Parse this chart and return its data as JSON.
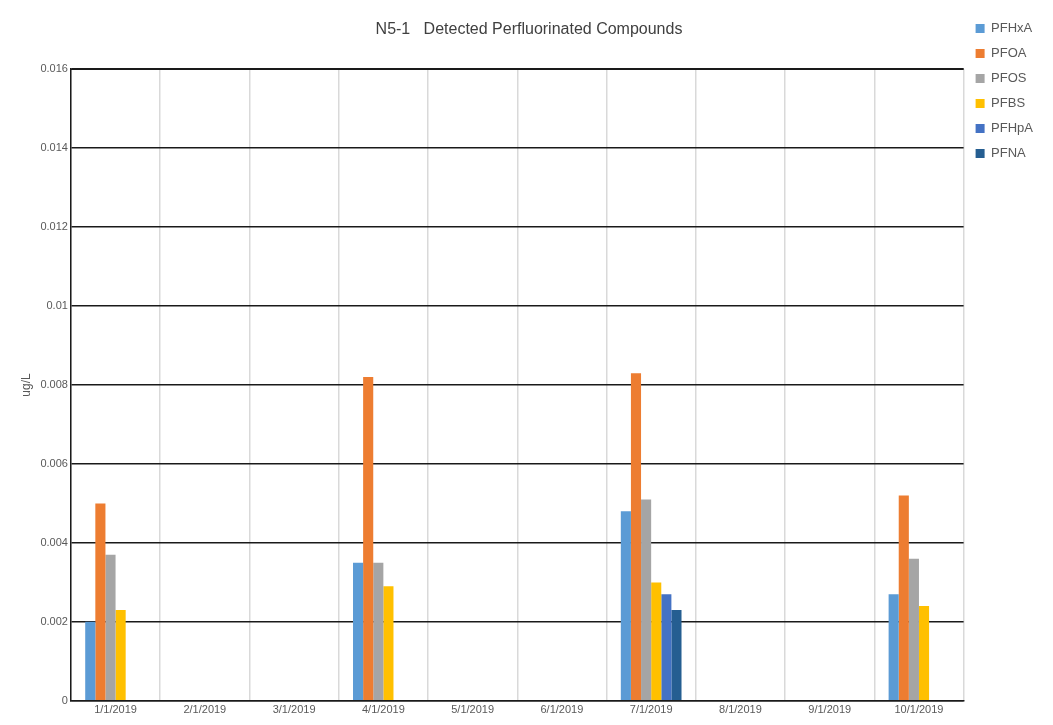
{
  "chart_data": {
    "type": "bar",
    "title": "N5-1   Detected Perfluorinated Compounds",
    "ylabel": "ug/L",
    "categories": [
      "1/1/2019",
      "2/1/2019",
      "3/1/2019",
      "4/1/2019",
      "5/1/2019",
      "6/1/2019",
      "7/1/2019",
      "8/1/2019",
      "9/1/2019",
      "10/1/2019"
    ],
    "series": [
      {
        "name": "PFHxA",
        "color": "#5b9bd5",
        "values": [
          0.002,
          null,
          null,
          0.0035,
          null,
          null,
          0.0048,
          null,
          null,
          0.0027
        ]
      },
      {
        "name": "PFOA",
        "color": "#ed7d31",
        "values": [
          0.005,
          null,
          null,
          0.0082,
          null,
          null,
          0.0083,
          null,
          null,
          0.0052
        ]
      },
      {
        "name": "PFOS",
        "color": "#a5a5a5",
        "values": [
          0.0037,
          null,
          null,
          0.0035,
          null,
          null,
          0.0051,
          null,
          null,
          0.0036
        ]
      },
      {
        "name": "PFBS",
        "color": "#ffc000",
        "values": [
          0.0023,
          null,
          null,
          0.0029,
          null,
          null,
          0.003,
          null,
          null,
          0.0024
        ]
      },
      {
        "name": "PFHpA",
        "color": "#4472c4",
        "values": [
          null,
          null,
          null,
          null,
          null,
          null,
          0.0027,
          null,
          null,
          null
        ]
      },
      {
        "name": "PFNA",
        "color": "#255e91",
        "values": [
          null,
          null,
          null,
          null,
          null,
          null,
          0.0023,
          null,
          null,
          null
        ]
      }
    ],
    "ylim": [
      0,
      0.016
    ],
    "yticks": [
      0,
      0.002,
      0.004,
      0.006,
      0.008,
      0.01,
      0.012,
      0.014,
      0.016
    ],
    "grid": true,
    "legend": "right"
  }
}
